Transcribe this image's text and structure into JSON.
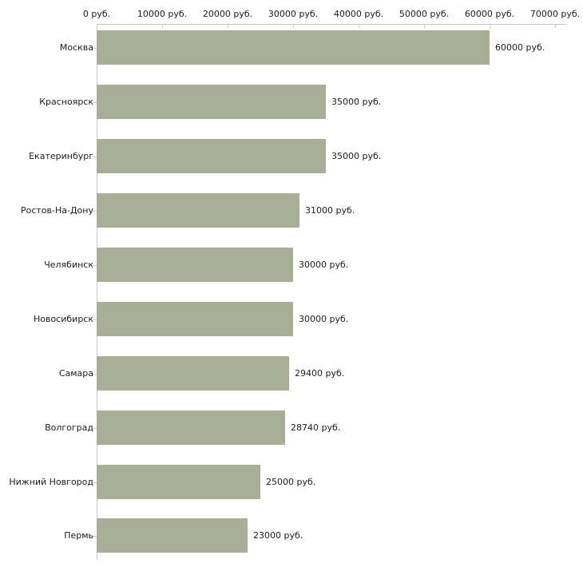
{
  "chart_data": {
    "type": "bar",
    "orientation": "horizontal",
    "title": "",
    "categories": [
      "Москва",
      "Красноярск",
      "Екатеринбург",
      "Ростов-На-Дону",
      "Челябинск",
      "Новосибирск",
      "Самара",
      "Волгоград",
      "Нижний Новгород",
      "Пермь"
    ],
    "values": [
      60000,
      35000,
      35000,
      31000,
      30000,
      30000,
      29400,
      28740,
      25000,
      23000
    ],
    "value_labels": [
      "60000 руб.",
      "35000 руб.",
      "35000 руб.",
      "31000 руб.",
      "30000 руб.",
      "30000 руб.",
      "29400 руб.",
      "28740 руб.",
      "25000 руб.",
      "23000 руб."
    ],
    "x_ticks": [
      0,
      10000,
      20000,
      30000,
      40000,
      50000,
      60000,
      70000
    ],
    "x_tick_labels": [
      "0 руб.",
      "10000 руб.",
      "20000 руб.",
      "30000 руб.",
      "40000 руб.",
      "50000 руб.",
      "60000 руб.",
      "70000 руб."
    ],
    "xlim": [
      0,
      70000
    ],
    "unit": "руб.",
    "xlabel": "",
    "ylabel": "",
    "legend": "none",
    "grid": false,
    "colors": {
      "bar": "#a9af97",
      "axis": "#c8c8c8",
      "tick": "#ccd1a4",
      "text": "#1c1c1c",
      "background": "#ffffff"
    }
  }
}
